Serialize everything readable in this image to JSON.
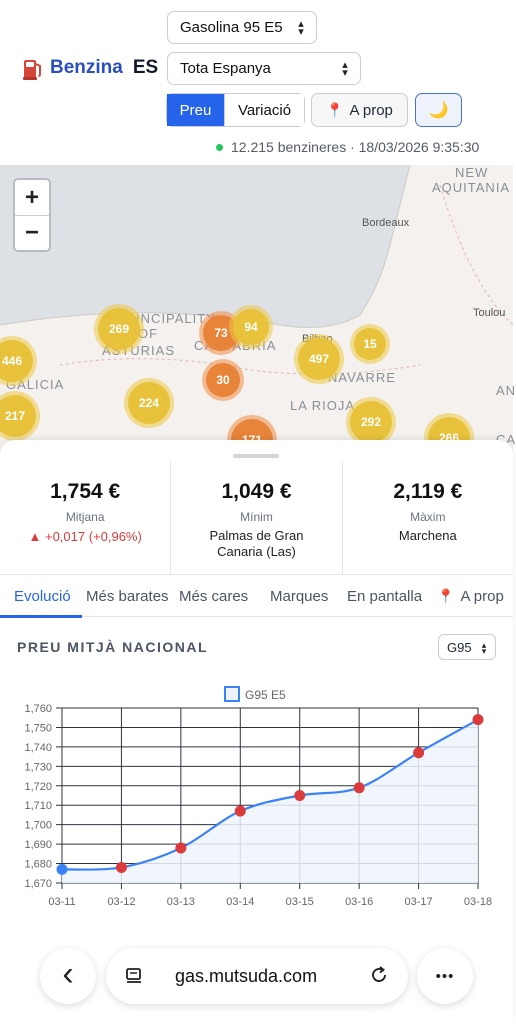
{
  "app": {
    "name": "Benzina",
    "country": "ES"
  },
  "filters": {
    "fuel": "Gasolina 95 E5",
    "region": "Tota Espanya",
    "mode_price": "Preu",
    "mode_variation": "Variació",
    "near_label": "A prop",
    "dark_icon": "moon-icon"
  },
  "status": {
    "text": "12.215 benzineres · 18/03/2026 9:35:30",
    "color": "#22c55e"
  },
  "map": {
    "zoom_in": "+",
    "zoom_out": "−",
    "labels": {
      "nouvelle": "NEW",
      "aquitaine": "AQUITANIA",
      "bordeaux": "Bordeaux",
      "toulouse": "Toulou",
      "principality": "PRINCIPALITY",
      "of": "OF",
      "asturias": "ASTURIAS",
      "cantabria": "CANTABRIA",
      "galicia": "GALICIA",
      "navarre": "NAVARRE",
      "larioja": "LA RIOJA",
      "bilbao": "Bilbao",
      "ca": "CA",
      "an": "AN"
    },
    "clusters": [
      "446",
      "269",
      "73",
      "94",
      "497",
      "15",
      "30",
      "224",
      "217",
      "292",
      "266",
      "171"
    ]
  },
  "stats": {
    "avg": {
      "value": "1,754 €",
      "label": "Mitjana",
      "change": "▲ +0,017 (+0,96%)"
    },
    "min": {
      "value": "1,049 €",
      "label": "Mínim",
      "place": "Palmas de Gran Canaria (Las)"
    },
    "max": {
      "value": "2,119 €",
      "label": "Màxim",
      "place": "Marchena"
    }
  },
  "tabs": [
    "Evolució",
    "Més barates",
    "Més cares",
    "Marques",
    "En pantalla",
    "A prop"
  ],
  "section": {
    "title": "PREU MITJÀ NACIONAL",
    "selector": "G95"
  },
  "chart_data": {
    "type": "line",
    "x": [
      "03-11",
      "03-12",
      "03-13",
      "03-14",
      "03-15",
      "03-16",
      "03-17",
      "03-18"
    ],
    "series": [
      {
        "name": "G95 E5",
        "values": [
          1.677,
          1.678,
          1.688,
          1.707,
          1.715,
          1.719,
          1.737,
          1.754
        ]
      }
    ],
    "ylim": [
      1.67,
      1.76
    ],
    "yticks": [
      "1,670",
      "1,680",
      "1,690",
      "1,700",
      "1,710",
      "1,720",
      "1,730",
      "1,740",
      "1,750",
      "1,760"
    ],
    "grid": true,
    "legend": "top",
    "colors": {
      "line": "#3b82f6",
      "fill": "#eef3fb",
      "point": "#dc3b3b",
      "first_point": "#3b82f6"
    }
  },
  "browser": {
    "url": "gas.mutsuda.com",
    "back": "‹",
    "more": "•••"
  }
}
